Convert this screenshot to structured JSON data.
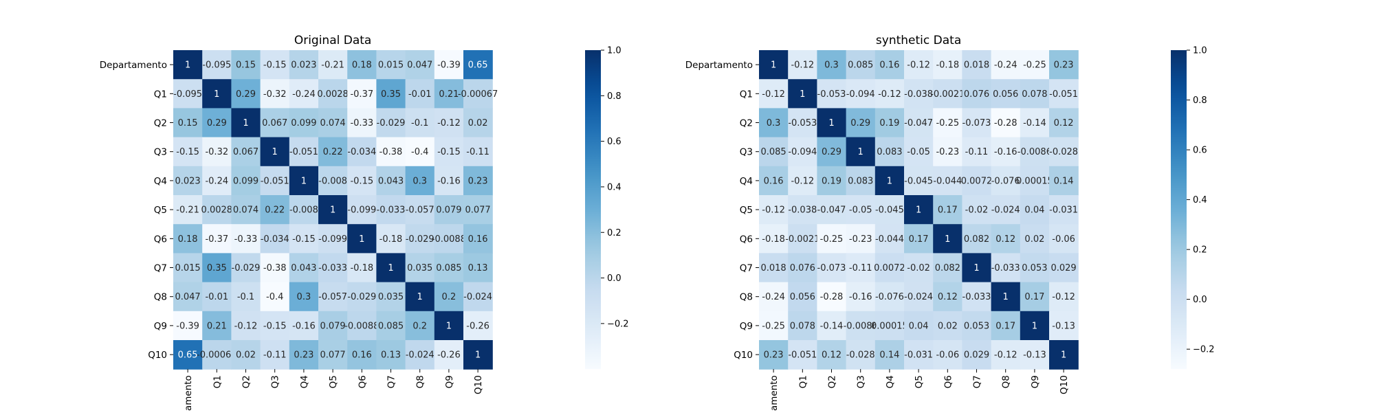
{
  "chart_data": [
    {
      "type": "heatmap",
      "title": "Original Data",
      "xlabel": "",
      "ylabel": "",
      "x_labels": [
        "Departamento",
        "Q1",
        "Q2",
        "Q3",
        "Q4",
        "Q5",
        "Q6",
        "Q7",
        "Q8",
        "Q9",
        "Q10"
      ],
      "x_tick_labels_visible": [
        "amento",
        "Q1",
        "Q2",
        "Q3",
        "Q4",
        "Q5",
        "Q6",
        "Q7",
        "Q8",
        "Q9",
        "Q10"
      ],
      "y_labels": [
        "Departamento",
        "Q1",
        "Q2",
        "Q3",
        "Q4",
        "Q5",
        "Q6",
        "Q7",
        "Q8",
        "Q9",
        "Q10"
      ],
      "values": [
        [
          1,
          -0.095,
          0.15,
          -0.15,
          0.023,
          -0.21,
          0.18,
          0.015,
          0.047,
          -0.39,
          0.65
        ],
        [
          -0.095,
          1,
          0.29,
          -0.32,
          -0.24,
          0.0028,
          -0.37,
          0.35,
          -0.01,
          0.21,
          -0.00067
        ],
        [
          0.15,
          0.29,
          1,
          0.067,
          0.099,
          0.074,
          -0.33,
          -0.029,
          -0.1,
          -0.12,
          0.02
        ],
        [
          -0.15,
          -0.32,
          0.067,
          1,
          -0.051,
          0.22,
          -0.034,
          -0.38,
          -0.4,
          -0.15,
          -0.11
        ],
        [
          0.023,
          -0.24,
          0.099,
          -0.051,
          1,
          -0.008,
          -0.15,
          0.043,
          0.3,
          -0.16,
          0.23
        ],
        [
          -0.21,
          0.0028,
          0.074,
          0.22,
          -0.008,
          1,
          -0.099,
          -0.033,
          -0.057,
          0.079,
          0.077
        ],
        [
          0.18,
          -0.37,
          -0.33,
          -0.034,
          -0.15,
          -0.099,
          1,
          -0.18,
          -0.029,
          -0.0088,
          0.16
        ],
        [
          0.015,
          0.35,
          -0.029,
          -0.38,
          0.043,
          -0.033,
          -0.18,
          1,
          0.035,
          0.085,
          0.13
        ],
        [
          0.047,
          -0.01,
          -0.1,
          -0.4,
          0.3,
          -0.057,
          -0.029,
          0.035,
          1,
          0.2,
          -0.024
        ],
        [
          -0.39,
          0.21,
          -0.12,
          -0.15,
          -0.16,
          0.079,
          -0.0088,
          0.085,
          0.2,
          1,
          -0.26
        ],
        [
          0.65,
          -0.00067,
          0.02,
          -0.11,
          0.23,
          0.077,
          0.16,
          0.13,
          -0.024,
          -0.26,
          1
        ]
      ],
      "color_range": [
        -0.4,
        1.0
      ],
      "colorbar_ticks": [
        1.0,
        0.8,
        0.6,
        0.4,
        0.2,
        0.0,
        -0.2
      ],
      "colorbar_tick_labels": [
        "1.0",
        "0.8",
        "0.6",
        "0.4",
        "0.2",
        "0.0",
        "−0.2"
      ],
      "colormap": "Blues",
      "annotated": true,
      "grid": false,
      "legend": "colorbar-right"
    },
    {
      "type": "heatmap",
      "title": "synthetic Data",
      "xlabel": "",
      "ylabel": "",
      "x_labels": [
        "Departamento",
        "Q1",
        "Q2",
        "Q3",
        "Q4",
        "Q5",
        "Q6",
        "Q7",
        "Q8",
        "Q9",
        "Q10"
      ],
      "x_tick_labels_visible": [
        "amento",
        "Q1",
        "Q2",
        "Q3",
        "Q4",
        "Q5",
        "Q6",
        "Q7",
        "Q8",
        "Q9",
        "Q10"
      ],
      "y_labels": [
        "Departamento",
        "Q1",
        "Q2",
        "Q3",
        "Q4",
        "Q5",
        "Q6",
        "Q7",
        "Q8",
        "Q9",
        "Q10"
      ],
      "values": [
        [
          1,
          -0.12,
          0.3,
          0.085,
          0.16,
          -0.12,
          -0.18,
          0.018,
          -0.24,
          -0.25,
          0.23
        ],
        [
          -0.12,
          1,
          -0.053,
          -0.094,
          -0.12,
          -0.038,
          -0.0021,
          0.076,
          0.056,
          0.078,
          -0.051
        ],
        [
          0.3,
          -0.053,
          1,
          0.29,
          0.19,
          -0.047,
          -0.25,
          -0.073,
          -0.28,
          -0.14,
          0.12
        ],
        [
          0.085,
          -0.094,
          0.29,
          1,
          0.083,
          -0.05,
          -0.23,
          -0.11,
          -0.16,
          -0.0086,
          -0.028
        ],
        [
          0.16,
          -0.12,
          0.19,
          0.083,
          1,
          -0.045,
          -0.044,
          0.0072,
          -0.076,
          0.00015,
          0.14
        ],
        [
          -0.12,
          -0.038,
          -0.047,
          -0.05,
          -0.045,
          1,
          0.17,
          -0.02,
          -0.024,
          0.04,
          -0.031
        ],
        [
          -0.18,
          -0.0021,
          -0.25,
          -0.23,
          -0.044,
          0.17,
          1,
          0.082,
          0.12,
          0.02,
          -0.06
        ],
        [
          0.018,
          0.076,
          -0.073,
          -0.11,
          0.0072,
          -0.02,
          0.082,
          1,
          -0.033,
          0.053,
          0.029
        ],
        [
          -0.24,
          0.056,
          -0.28,
          -0.16,
          -0.076,
          -0.024,
          0.12,
          -0.033,
          1,
          0.17,
          -0.12
        ],
        [
          -0.25,
          0.078,
          -0.14,
          -0.0086,
          0.00015,
          0.04,
          0.02,
          0.053,
          0.17,
          1,
          -0.13
        ],
        [
          0.23,
          -0.051,
          0.12,
          -0.028,
          0.14,
          -0.031,
          -0.06,
          0.029,
          -0.12,
          -0.13,
          1
        ]
      ],
      "color_range": [
        -0.28,
        1.0
      ],
      "colorbar_ticks": [
        1.0,
        0.8,
        0.6,
        0.4,
        0.2,
        0.0,
        -0.2
      ],
      "colorbar_tick_labels": [
        "1.0",
        "0.8",
        "0.6",
        "0.4",
        "0.2",
        "0.0",
        "−0.2"
      ],
      "colormap": "Blues",
      "annotated": true,
      "grid": false,
      "legend": "colorbar-right"
    }
  ]
}
